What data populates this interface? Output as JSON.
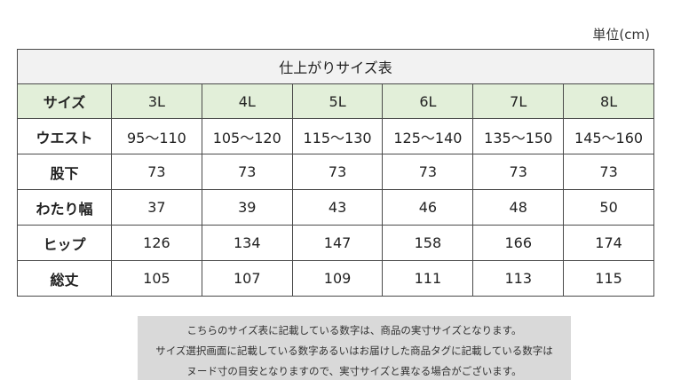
{
  "unit_label": "単位(cm)",
  "table": {
    "title": "仕上がりサイズ表",
    "header_label": "サイズ",
    "sizes": [
      "3L",
      "4L",
      "5L",
      "6L",
      "7L",
      "8L"
    ],
    "rows": [
      {
        "label": "ウエスト",
        "values": [
          "95～110",
          "105～120",
          "115～130",
          "125～140",
          "135～150",
          "145～160"
        ]
      },
      {
        "label": "股下",
        "values": [
          "73",
          "73",
          "73",
          "73",
          "73",
          "73"
        ]
      },
      {
        "label": "わたり幅",
        "values": [
          "37",
          "39",
          "43",
          "46",
          "48",
          "50"
        ]
      },
      {
        "label": "ヒップ",
        "values": [
          "126",
          "134",
          "147",
          "158",
          "166",
          "174"
        ]
      },
      {
        "label": "総丈",
        "values": [
          "105",
          "107",
          "109",
          "111",
          "113",
          "115"
        ]
      }
    ]
  },
  "note": {
    "lines": [
      "こちらのサイズ表に記載している数字は、商品の実寸サイズとなります。",
      "サイズ選択画面に記載している数字あるいはお届けした商品タグに記載している数字は",
      "ヌード寸の目安となりますので、実寸サイズと異なる場合がございます。"
    ]
  },
  "colors": {
    "title_bg": "#f2f2f2",
    "header_bg": "#e2efd9",
    "note_bg": "#d9d9d9",
    "border": "#4a4a4a"
  }
}
